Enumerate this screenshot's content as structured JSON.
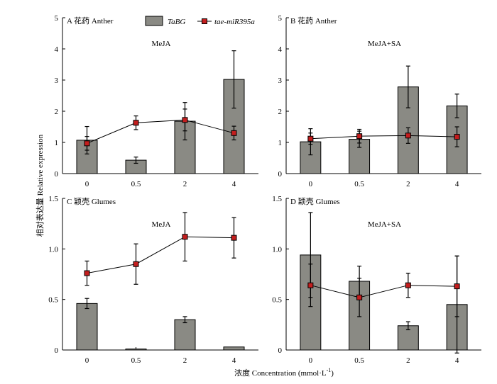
{
  "figure": {
    "ylabel": "相对表达量 Relative expression",
    "xlabel_main": "浓度 Concentration (mmol·L",
    "xlabel_sup": "-1",
    "xlabel_end": ")"
  },
  "legend": {
    "bar_label": "TaBG",
    "line_label": "tae-miR395a"
  },
  "colors": {
    "bar_fill": "#8a8a84",
    "line": "#000000",
    "marker": "#c41e1e"
  },
  "chart_data": [
    {
      "type": "bar",
      "panel": "A",
      "panel_title": "花药 Anther",
      "condition": "MeJA",
      "categories": [
        "0",
        "0.5",
        "2",
        "4"
      ],
      "ylim": [
        0,
        5
      ],
      "yticks": [
        "0",
        "1",
        "2",
        "3",
        "4",
        "5"
      ],
      "series": [
        {
          "name": "TaBG",
          "kind": "bar",
          "values": [
            1.07,
            0.43,
            1.68,
            3.02
          ],
          "errors": [
            0.44,
            0.1,
            0.6,
            0.92
          ]
        },
        {
          "name": "tae-miR395a",
          "kind": "line",
          "values": [
            0.97,
            1.63,
            1.72,
            1.3
          ],
          "errors": [
            0.22,
            0.22,
            0.35,
            0.22
          ]
        }
      ]
    },
    {
      "type": "bar",
      "panel": "B",
      "panel_title": "花药 Anther",
      "condition": "MeJA+SA",
      "categories": [
        "0",
        "0.5",
        "2",
        "4"
      ],
      "ylim": [
        0,
        5
      ],
      "yticks": [
        "0",
        "1",
        "2",
        "3",
        "4",
        "5"
      ],
      "series": [
        {
          "name": "TaBG",
          "kind": "bar",
          "values": [
            1.02,
            1.1,
            2.78,
            2.17
          ],
          "errors": [
            0.42,
            0.26,
            0.67,
            0.38
          ]
        },
        {
          "name": "tae-miR395a",
          "kind": "line",
          "values": [
            1.12,
            1.2,
            1.22,
            1.18
          ],
          "errors": [
            0.18,
            0.22,
            0.25,
            0.32
          ]
        }
      ]
    },
    {
      "type": "bar",
      "panel": "C",
      "panel_title": "颖壳 Glumes",
      "condition": "MeJA",
      "categories": [
        "0",
        "0.5",
        "2",
        "4"
      ],
      "ylim": [
        0,
        1.5
      ],
      "yticks": [
        "0",
        "0.5",
        "1.0",
        "1.5"
      ],
      "series": [
        {
          "name": "TaBG",
          "kind": "bar",
          "values": [
            0.46,
            0.01,
            0.3,
            0.03
          ],
          "errors": [
            0.05,
            0.005,
            0.03,
            0.007
          ]
        },
        {
          "name": "tae-miR395a",
          "kind": "line",
          "values": [
            0.76,
            0.85,
            1.12,
            1.11
          ],
          "errors": [
            0.12,
            0.2,
            0.24,
            0.2
          ]
        }
      ]
    },
    {
      "type": "bar",
      "panel": "D",
      "panel_title": "颖壳 Glumes",
      "condition": "MeJA+SA",
      "categories": [
        "0",
        "0.5",
        "2",
        "4"
      ],
      "ylim": [
        0,
        1.5
      ],
      "yticks": [
        "0",
        "0.5",
        "1.0",
        "1.5"
      ],
      "series": [
        {
          "name": "TaBG",
          "kind": "bar",
          "values": [
            0.94,
            0.68,
            0.24,
            0.45
          ],
          "errors": [
            0.42,
            0.15,
            0.04,
            0.48
          ]
        },
        {
          "name": "tae-miR395a",
          "kind": "line",
          "values": [
            0.64,
            0.52,
            0.64,
            0.63
          ],
          "errors": [
            0.21,
            0.19,
            0.12,
            0.3
          ]
        }
      ]
    }
  ]
}
